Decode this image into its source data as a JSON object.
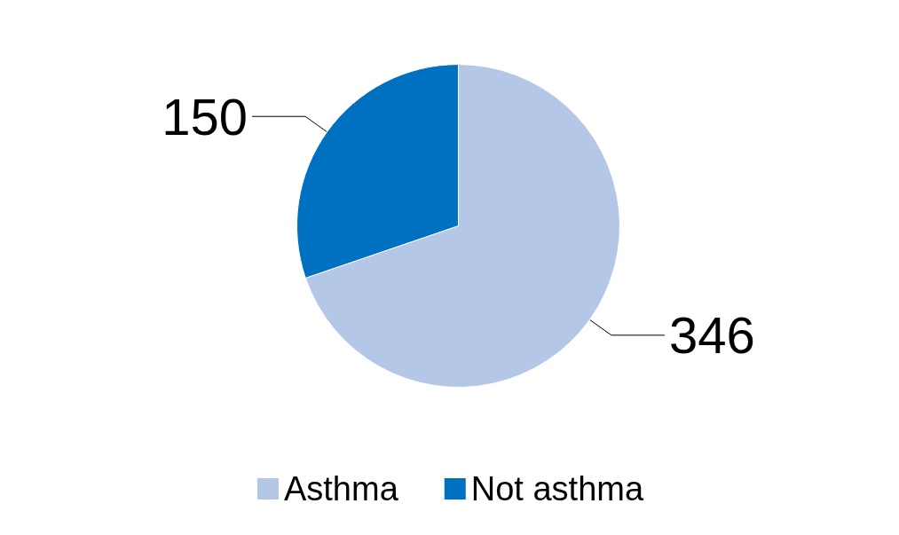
{
  "chart_data": {
    "type": "pie",
    "categories": [
      "Asthma",
      "Not asthma"
    ],
    "values": [
      346,
      150
    ],
    "colors": [
      "#b4c7e7",
      "#0070c0"
    ],
    "data_labels": true,
    "legend": "bottom"
  }
}
